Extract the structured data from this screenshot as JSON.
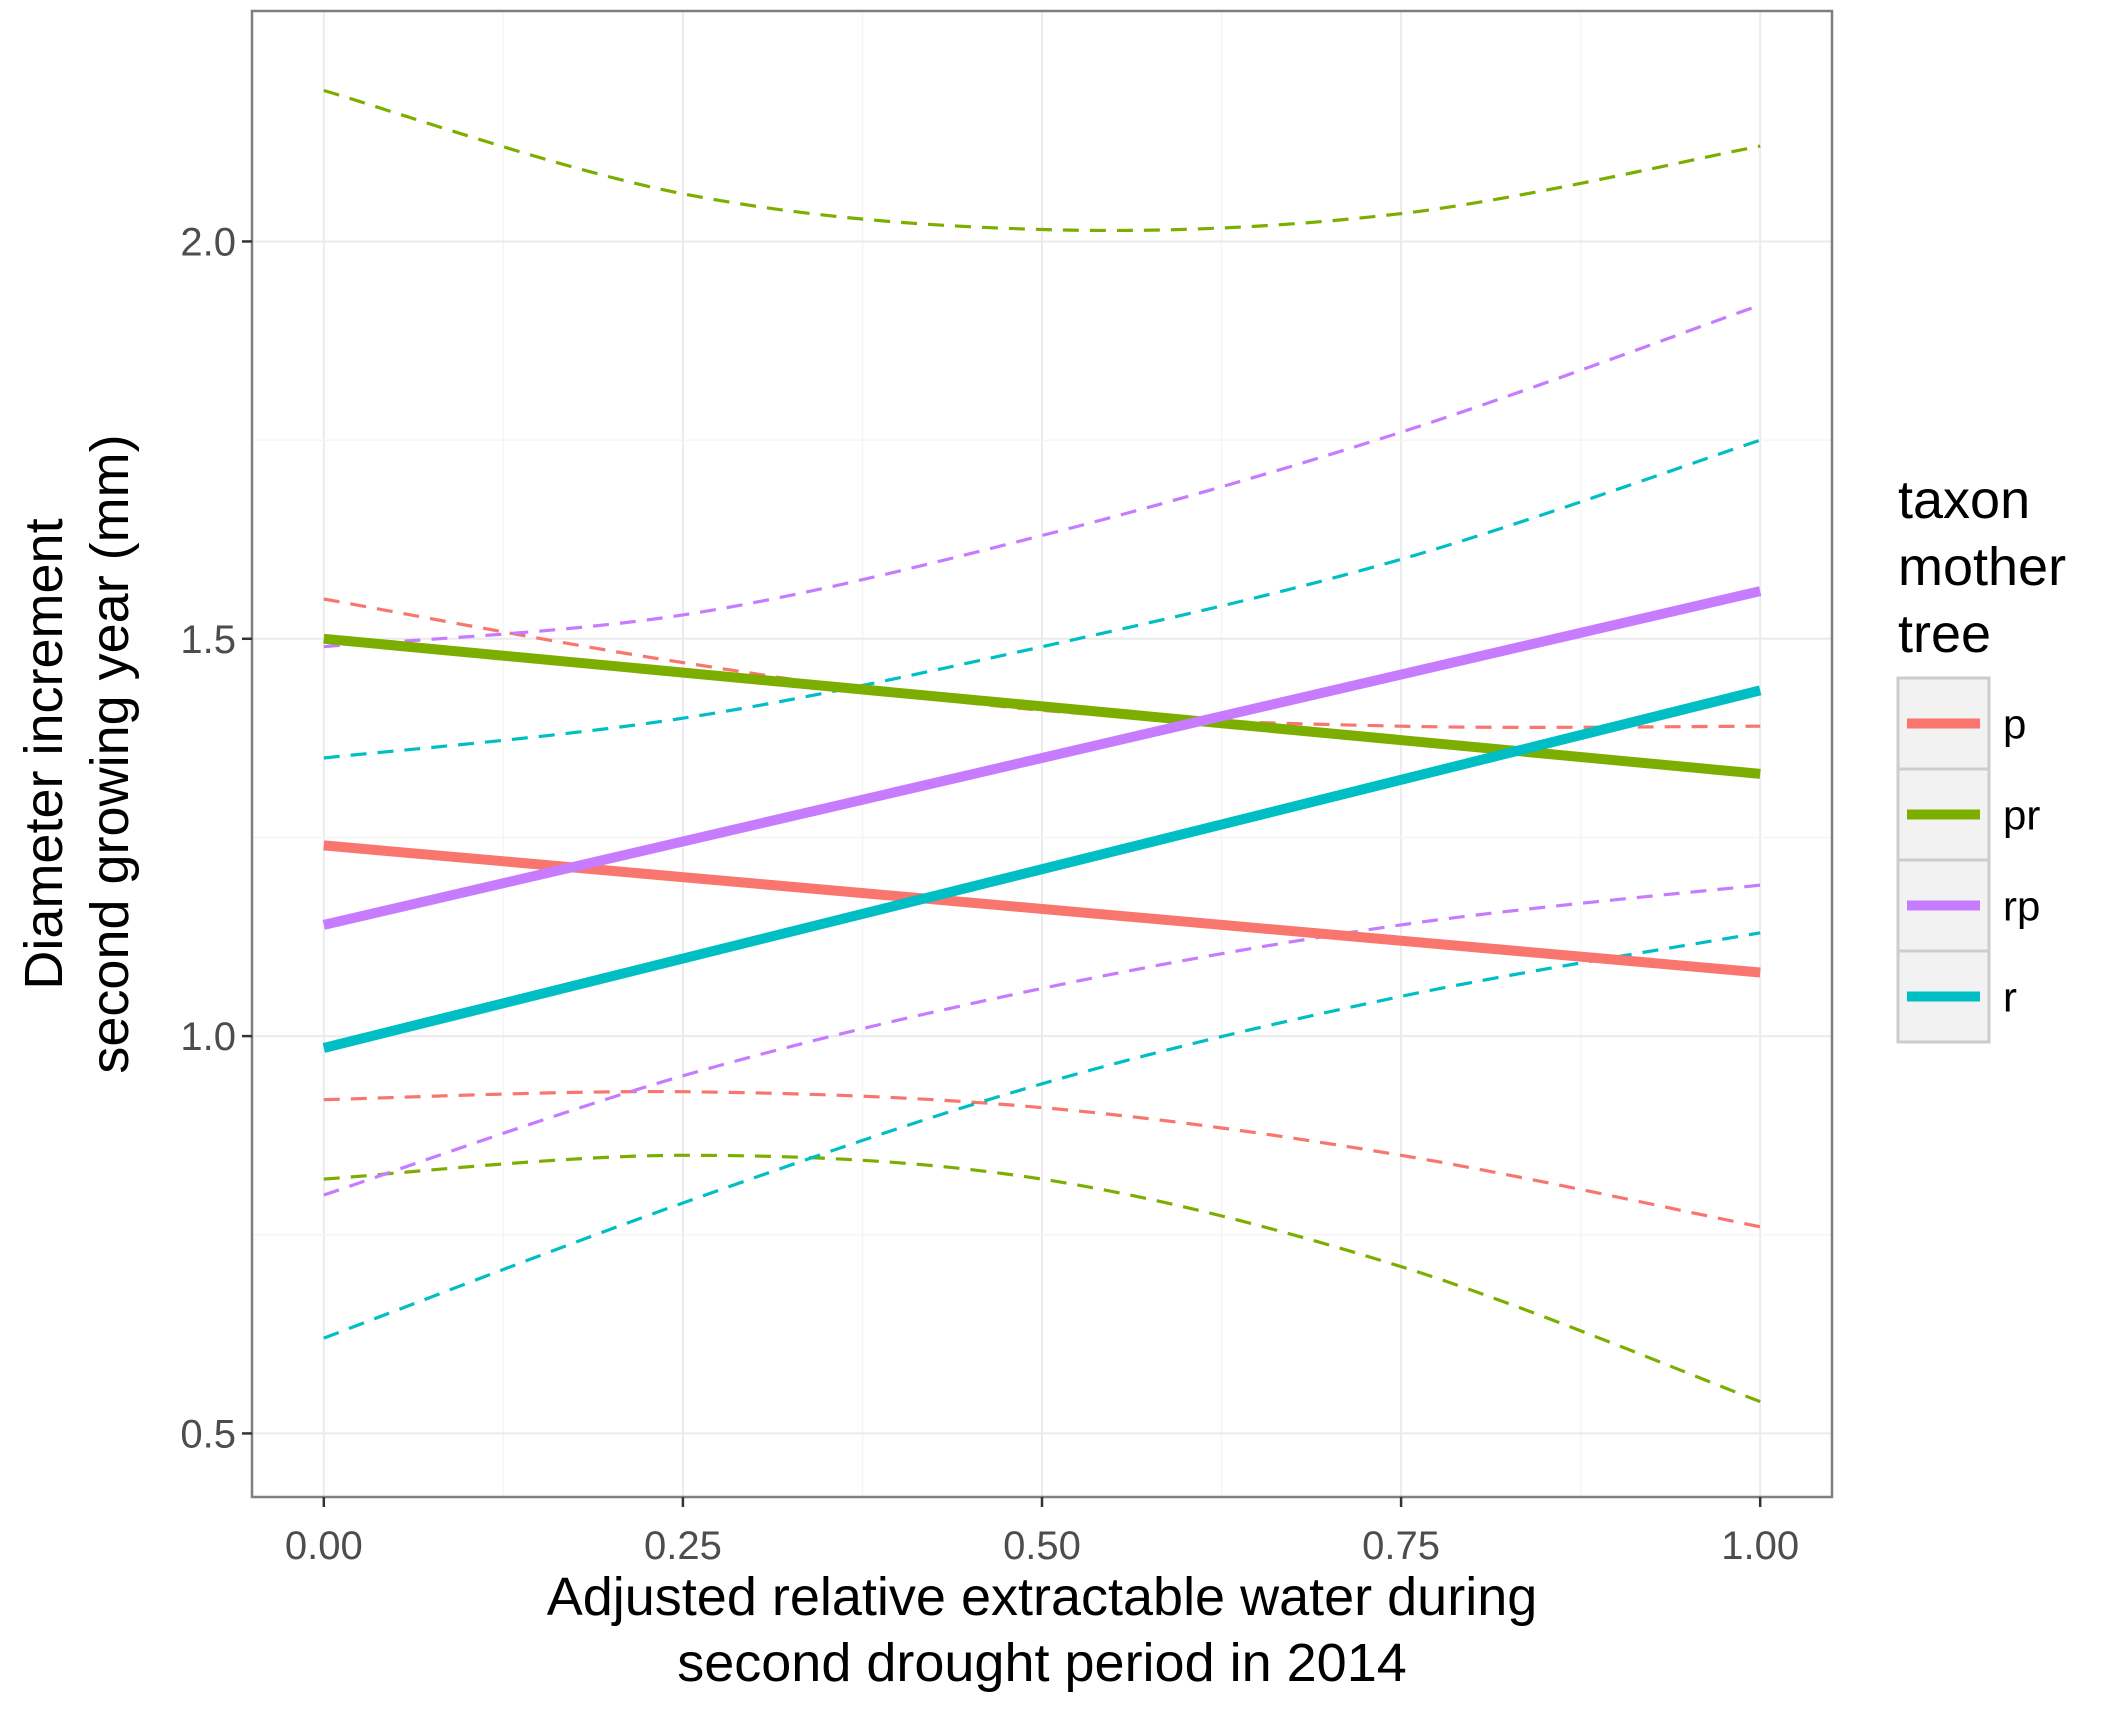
{
  "chart_data": {
    "type": "line",
    "xlabel": [
      "Adjusted relative extractable water during",
      "second drought period in 2014"
    ],
    "ylabel": [
      "Diameter increment",
      "second growing year (mm)"
    ],
    "xlim": [
      -0.05,
      1.05
    ],
    "ylim": [
      0.42,
      2.29
    ],
    "xticks": [
      0.0,
      0.25,
      0.5,
      0.75,
      1.0
    ],
    "xtick_labels": [
      "0.00",
      "0.25",
      "0.50",
      "0.75",
      "1.00"
    ],
    "yticks": [
      0.5,
      1.0,
      1.5,
      2.0
    ],
    "ytick_labels": [
      "0.5",
      "1.0",
      "1.5",
      "2.0"
    ],
    "grid": true,
    "legend": {
      "title": [
        "taxon",
        "mother",
        "tree"
      ],
      "position": "right"
    },
    "series": [
      {
        "name": "p",
        "color": "#F8766D",
        "fit": [
          [
            0.0,
            1.24
          ],
          [
            1.0,
            1.08
          ]
        ],
        "lower": [
          [
            0.0,
            0.92
          ],
          [
            0.25,
            0.93
          ],
          [
            0.5,
            0.91
          ],
          [
            0.75,
            0.85
          ],
          [
            1.0,
            0.76
          ]
        ],
        "upper": [
          [
            0.0,
            1.55
          ],
          [
            0.25,
            1.47
          ],
          [
            0.5,
            1.41
          ],
          [
            0.75,
            1.39
          ],
          [
            1.0,
            1.39
          ]
        ]
      },
      {
        "name": "pr",
        "color": "#7CAE00",
        "fit": [
          [
            0.0,
            1.5
          ],
          [
            1.0,
            1.33
          ]
        ],
        "lower": [
          [
            0.0,
            0.82
          ],
          [
            0.25,
            0.85
          ],
          [
            0.5,
            0.82
          ],
          [
            0.75,
            0.71
          ],
          [
            1.0,
            0.54
          ]
        ],
        "upper": [
          [
            0.0,
            2.19
          ],
          [
            0.25,
            2.06
          ],
          [
            0.5,
            2.015
          ],
          [
            0.75,
            2.035
          ],
          [
            1.0,
            2.12
          ]
        ]
      },
      {
        "name": "rp",
        "color": "#C77CFF",
        "fit": [
          [
            0.0,
            1.14
          ],
          [
            1.0,
            1.56
          ]
        ],
        "lower": [
          [
            0.0,
            0.8
          ],
          [
            0.25,
            0.95
          ],
          [
            0.5,
            1.06
          ],
          [
            0.75,
            1.14
          ],
          [
            1.0,
            1.19
          ]
        ],
        "upper": [
          [
            0.0,
            1.49
          ],
          [
            0.25,
            1.53
          ],
          [
            0.5,
            1.63
          ],
          [
            0.75,
            1.76
          ],
          [
            1.0,
            1.92
          ]
        ]
      },
      {
        "name": "r",
        "color": "#00BFC4",
        "fit": [
          [
            0.0,
            0.985
          ],
          [
            1.0,
            1.435
          ]
        ],
        "lower": [
          [
            0.0,
            0.62
          ],
          [
            0.25,
            0.79
          ],
          [
            0.5,
            0.94
          ],
          [
            0.75,
            1.05
          ],
          [
            1.0,
            1.13
          ]
        ],
        "upper": [
          [
            0.0,
            1.35
          ],
          [
            0.25,
            1.4
          ],
          [
            0.5,
            1.49
          ],
          [
            0.75,
            1.6
          ],
          [
            1.0,
            1.75
          ]
        ]
      }
    ]
  }
}
